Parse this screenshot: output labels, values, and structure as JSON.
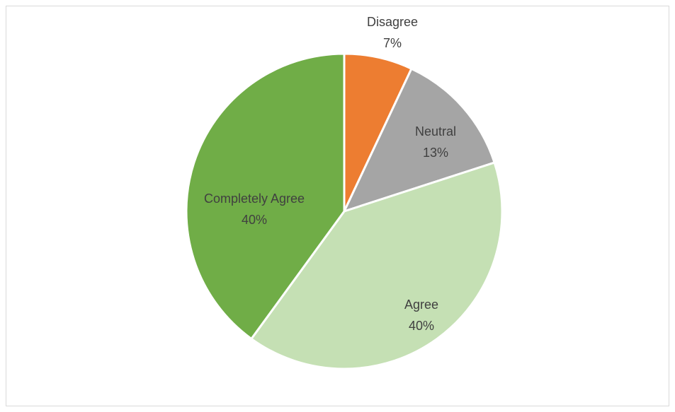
{
  "chart_data": {
    "type": "pie",
    "title": "",
    "categories": [
      "Disagree",
      "Neutral",
      "Agree",
      "Completely Agree"
    ],
    "values": [
      7,
      13,
      40,
      40
    ],
    "percent_labels": [
      "7%",
      "13%",
      "40%",
      "40%"
    ],
    "colors": [
      "#ED7D31",
      "#A5A5A5",
      "#C5E0B4",
      "#70AD47"
    ],
    "legend": "none",
    "data_labels": "category and percentage"
  }
}
